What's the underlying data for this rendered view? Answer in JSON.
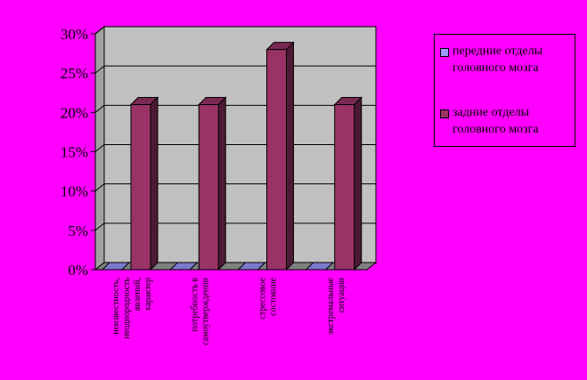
{
  "chart_data": {
    "type": "bar",
    "categories": [
      [
        "неизвестность,",
        "неоднородность",
        "явлений,",
        "характер"
      ],
      [
        "потребность в",
        "самоутверждении"
      ],
      [
        "стрессовое",
        "состояние"
      ],
      [
        "экстремальные",
        "ситуации"
      ]
    ],
    "series": [
      {
        "name": "передние отделы головного мозга",
        "values": [
          0,
          0,
          0,
          0
        ],
        "color": "#9999ff"
      },
      {
        "name": "задние отделы головного мозга",
        "values": [
          21,
          21,
          28,
          21
        ],
        "color": "#993366"
      }
    ],
    "ylim": [
      0,
      30
    ],
    "yticks": [
      "0%",
      "5%",
      "10%",
      "15%",
      "20%",
      "25%",
      "30%"
    ],
    "ytick_values": [
      0,
      5,
      10,
      15,
      20,
      25,
      30
    ],
    "grid": true,
    "legend_position": "right",
    "plot_background": "#c0c0c0"
  }
}
